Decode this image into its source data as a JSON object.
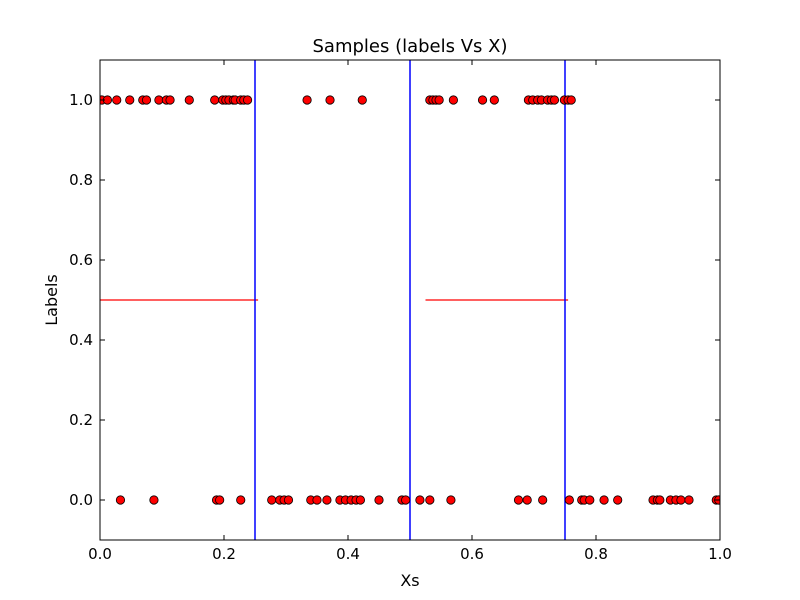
{
  "chart_data": {
    "type": "scatter",
    "title": "Samples (labels Vs X)",
    "xlabel": "Xs",
    "ylabel": "Labels",
    "xlim": [
      0.0,
      1.0
    ],
    "ylim": [
      -0.1,
      1.1
    ],
    "xticks": [
      "0.0",
      "0.2",
      "0.4",
      "0.6",
      "0.8",
      "1.0"
    ],
    "yticks": [
      "0.0",
      "0.2",
      "0.4",
      "0.6",
      "0.8",
      "1.0"
    ],
    "grid": false,
    "colors": {
      "points": "#ff0000",
      "vlines": "#0000ff",
      "hlines": "#ff0000"
    },
    "points_label_1": [
      0.003,
      0.012,
      0.027,
      0.048,
      0.069,
      0.075,
      0.095,
      0.107,
      0.113,
      0.144,
      0.185,
      0.198,
      0.203,
      0.208,
      0.215,
      0.218,
      0.227,
      0.232,
      0.238,
      0.334,
      0.371,
      0.423,
      0.532,
      0.537,
      0.542,
      0.547,
      0.57,
      0.617,
      0.636,
      0.691,
      0.698,
      0.706,
      0.712,
      0.722,
      0.728,
      0.733,
      0.749,
      0.755,
      0.76
    ],
    "points_label_0": [
      0.033,
      0.087,
      0.188,
      0.193,
      0.227,
      0.277,
      0.29,
      0.297,
      0.304,
      0.34,
      0.35,
      0.366,
      0.387,
      0.396,
      0.405,
      0.413,
      0.42,
      0.45,
      0.487,
      0.493,
      0.516,
      0.532,
      0.566,
      0.675,
      0.689,
      0.714,
      0.757,
      0.777,
      0.781,
      0.79,
      0.813,
      0.835,
      0.892,
      0.899,
      0.903,
      0.92,
      0.929,
      0.937,
      0.95,
      0.994,
      0.998
    ],
    "vertical_lines_x": [
      0.25,
      0.5,
      0.75
    ],
    "horizontal_segments": [
      {
        "y": 0.5,
        "x_start": 0.0,
        "x_end": 0.255
      },
      {
        "y": 0.5,
        "x_start": 0.525,
        "x_end": 0.755
      }
    ]
  }
}
